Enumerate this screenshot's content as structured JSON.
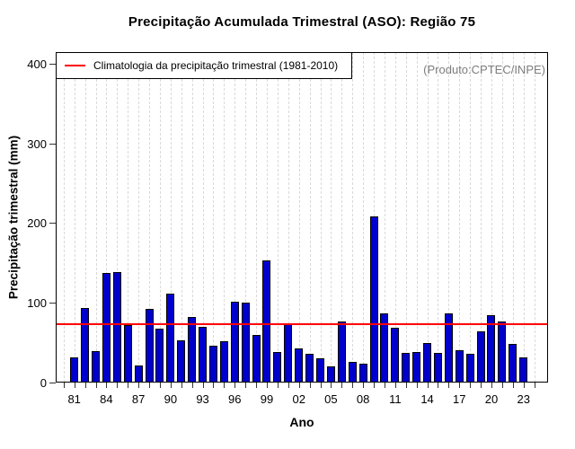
{
  "title": "Precipitação Acumulada Trimestral (ASO): Região 75",
  "annotation": "(Produto:CPTEC/INPE)",
  "legend": {
    "label": "Climatologia da precipitação trimestral (1981-2010)"
  },
  "colors": {
    "bar_fill": "#0000CD",
    "bar_border": "#000000",
    "climatology_line": "#FF0000",
    "grid": "#D9D9D9",
    "annotation_text": "#7D7D7D"
  },
  "chart_data": {
    "type": "bar",
    "title": "Precipitação Acumulada Trimestral (ASO): Região 75",
    "xlabel": "Ano",
    "ylabel": "Precipitação trimestral (mm)",
    "legend_entry": "Climatologia da precipitação trimestral (1981-2010)",
    "legend_position": "top-left",
    "grid": "vertical dashed line per year",
    "xlim": [
      1980,
      2024
    ],
    "ylim": [
      0,
      400
    ],
    "y_ticks": [
      0,
      100,
      200,
      300,
      400
    ],
    "x_tick_labels": [
      "81",
      "84",
      "87",
      "90",
      "93",
      "96",
      "99",
      "02",
      "05",
      "08",
      "11",
      "14",
      "17",
      "20",
      "23"
    ],
    "climatology_mm": 73,
    "years": [
      1981,
      1982,
      1983,
      1984,
      1985,
      1986,
      1987,
      1988,
      1989,
      1990,
      1991,
      1992,
      1993,
      1994,
      1995,
      1996,
      1997,
      1998,
      1999,
      2000,
      2001,
      2002,
      2003,
      2004,
      2005,
      2006,
      2007,
      2008,
      2009,
      2010,
      2011,
      2012,
      2013,
      2014,
      2015,
      2016,
      2017,
      2018,
      2019,
      2020,
      2021,
      2022,
      2023
    ],
    "values": [
      31,
      93,
      39,
      137,
      139,
      72,
      21,
      92,
      68,
      112,
      53,
      82,
      70,
      46,
      52,
      101,
      100,
      60,
      153,
      38,
      74,
      43,
      36,
      30,
      20,
      77,
      26,
      24,
      208,
      87,
      69,
      37,
      38,
      50,
      37,
      87,
      41,
      36,
      64,
      84,
      77,
      48,
      31
    ]
  }
}
